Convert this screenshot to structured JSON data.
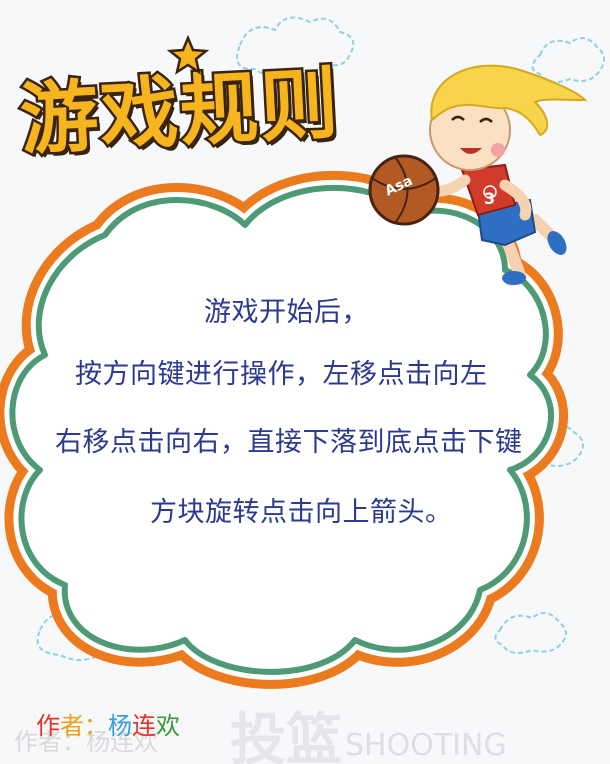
{
  "title": "游戏规则",
  "rules": [
    "游戏开始后，",
    "按方向键进行操作，左移点击向左",
    "右移点击向右，直接下落到底点击下键",
    "方块旋转点击向上箭头。"
  ],
  "author": {
    "label_part1": "作",
    "label_part2": "者：",
    "name_part1": "杨",
    "name_part2": "连",
    "name_part3": "欢"
  },
  "watermark": {
    "author": "作者：杨连欢",
    "big": "投篮",
    "shooting": "SHOOTING"
  },
  "ball_text": "Asa",
  "jersey_number": "3",
  "colors": {
    "title_fill": "#f6b51e",
    "title_outline": "#3a2410",
    "text": "#2b3990",
    "bubble_orange": "#ec7a1f",
    "bubble_green": "#4e9a76",
    "cloud_outline": "#8fd0e6"
  }
}
